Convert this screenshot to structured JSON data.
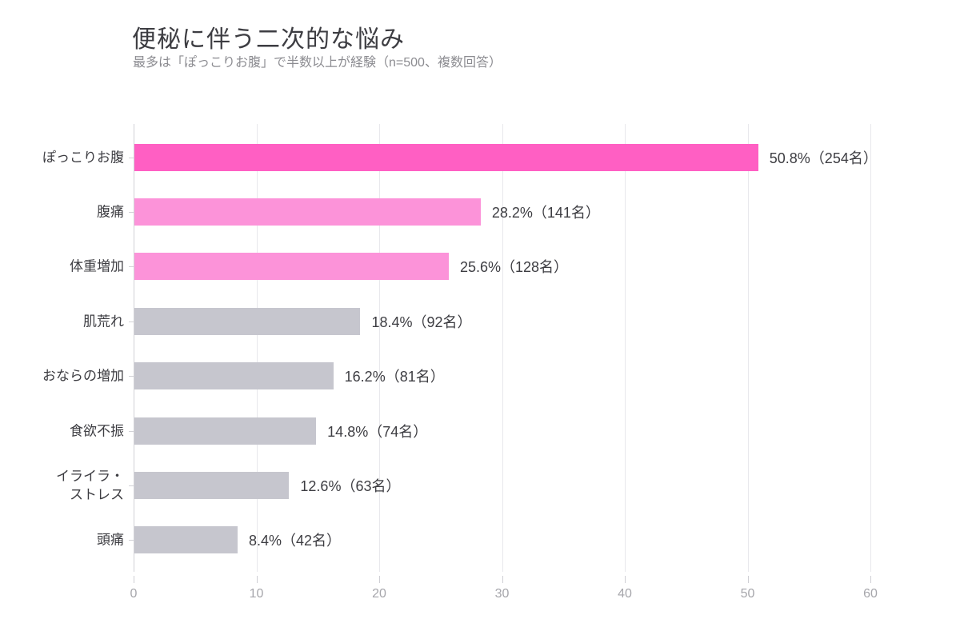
{
  "header": {
    "title": "便秘に伴う二次的な悩み",
    "subtitle": "最多は「ぽっこりお腹」で半数以上が経験（n=500、複数回答）"
  },
  "colors": {
    "bar_highlight": "#ff5fc3",
    "bar_secondary": "#fc93d9",
    "bar_neutral": "#c6c6ce",
    "gridline": "#e8e8ec",
    "axis_line": "#d2d2d7",
    "tick_label": "#a6a6ab",
    "text": "#3d3d42",
    "subtitle_text": "#8c8c91"
  },
  "chart_data": {
    "type": "bar",
    "orientation": "horizontal",
    "title": "便秘に伴う二次的な悩み",
    "subtitle": "最多は「ぽっこりお腹」で半数以上が経験（n=500、複数回答）",
    "n": 500,
    "categories": [
      "ぽっこりお腹",
      "腹痛",
      "体重増加",
      "肌荒れ",
      "おならの増加",
      "食欲不振",
      "イライラ・ストレス",
      "頭痛"
    ],
    "display_labels": [
      "ぽっこりお腹",
      "腹痛",
      "体重増加",
      "肌荒れ",
      "おならの増加",
      "食欲不振",
      "イライラ・\nストレス",
      "頭痛"
    ],
    "values": [
      50.8,
      28.2,
      25.6,
      18.4,
      16.2,
      14.8,
      12.6,
      8.4
    ],
    "counts": [
      254,
      141,
      128,
      92,
      81,
      74,
      63,
      42
    ],
    "value_labels": [
      "50.8%（254名）",
      "28.2%（141名）",
      "25.6%（128名）",
      "18.4%（92名）",
      "16.2%（81名）",
      "14.8%（74名）",
      "12.6%（63名）",
      "8.4%（42名）"
    ],
    "bar_colors": [
      "#ff5fc3",
      "#fc93d9",
      "#fc93d9",
      "#c6c6ce",
      "#c6c6ce",
      "#c6c6ce",
      "#c6c6ce",
      "#c6c6ce"
    ],
    "x_ticks": [
      0,
      10,
      20,
      30,
      40,
      50,
      60
    ],
    "xlim": [
      0,
      60
    ],
    "grid": true,
    "legend": false
  }
}
